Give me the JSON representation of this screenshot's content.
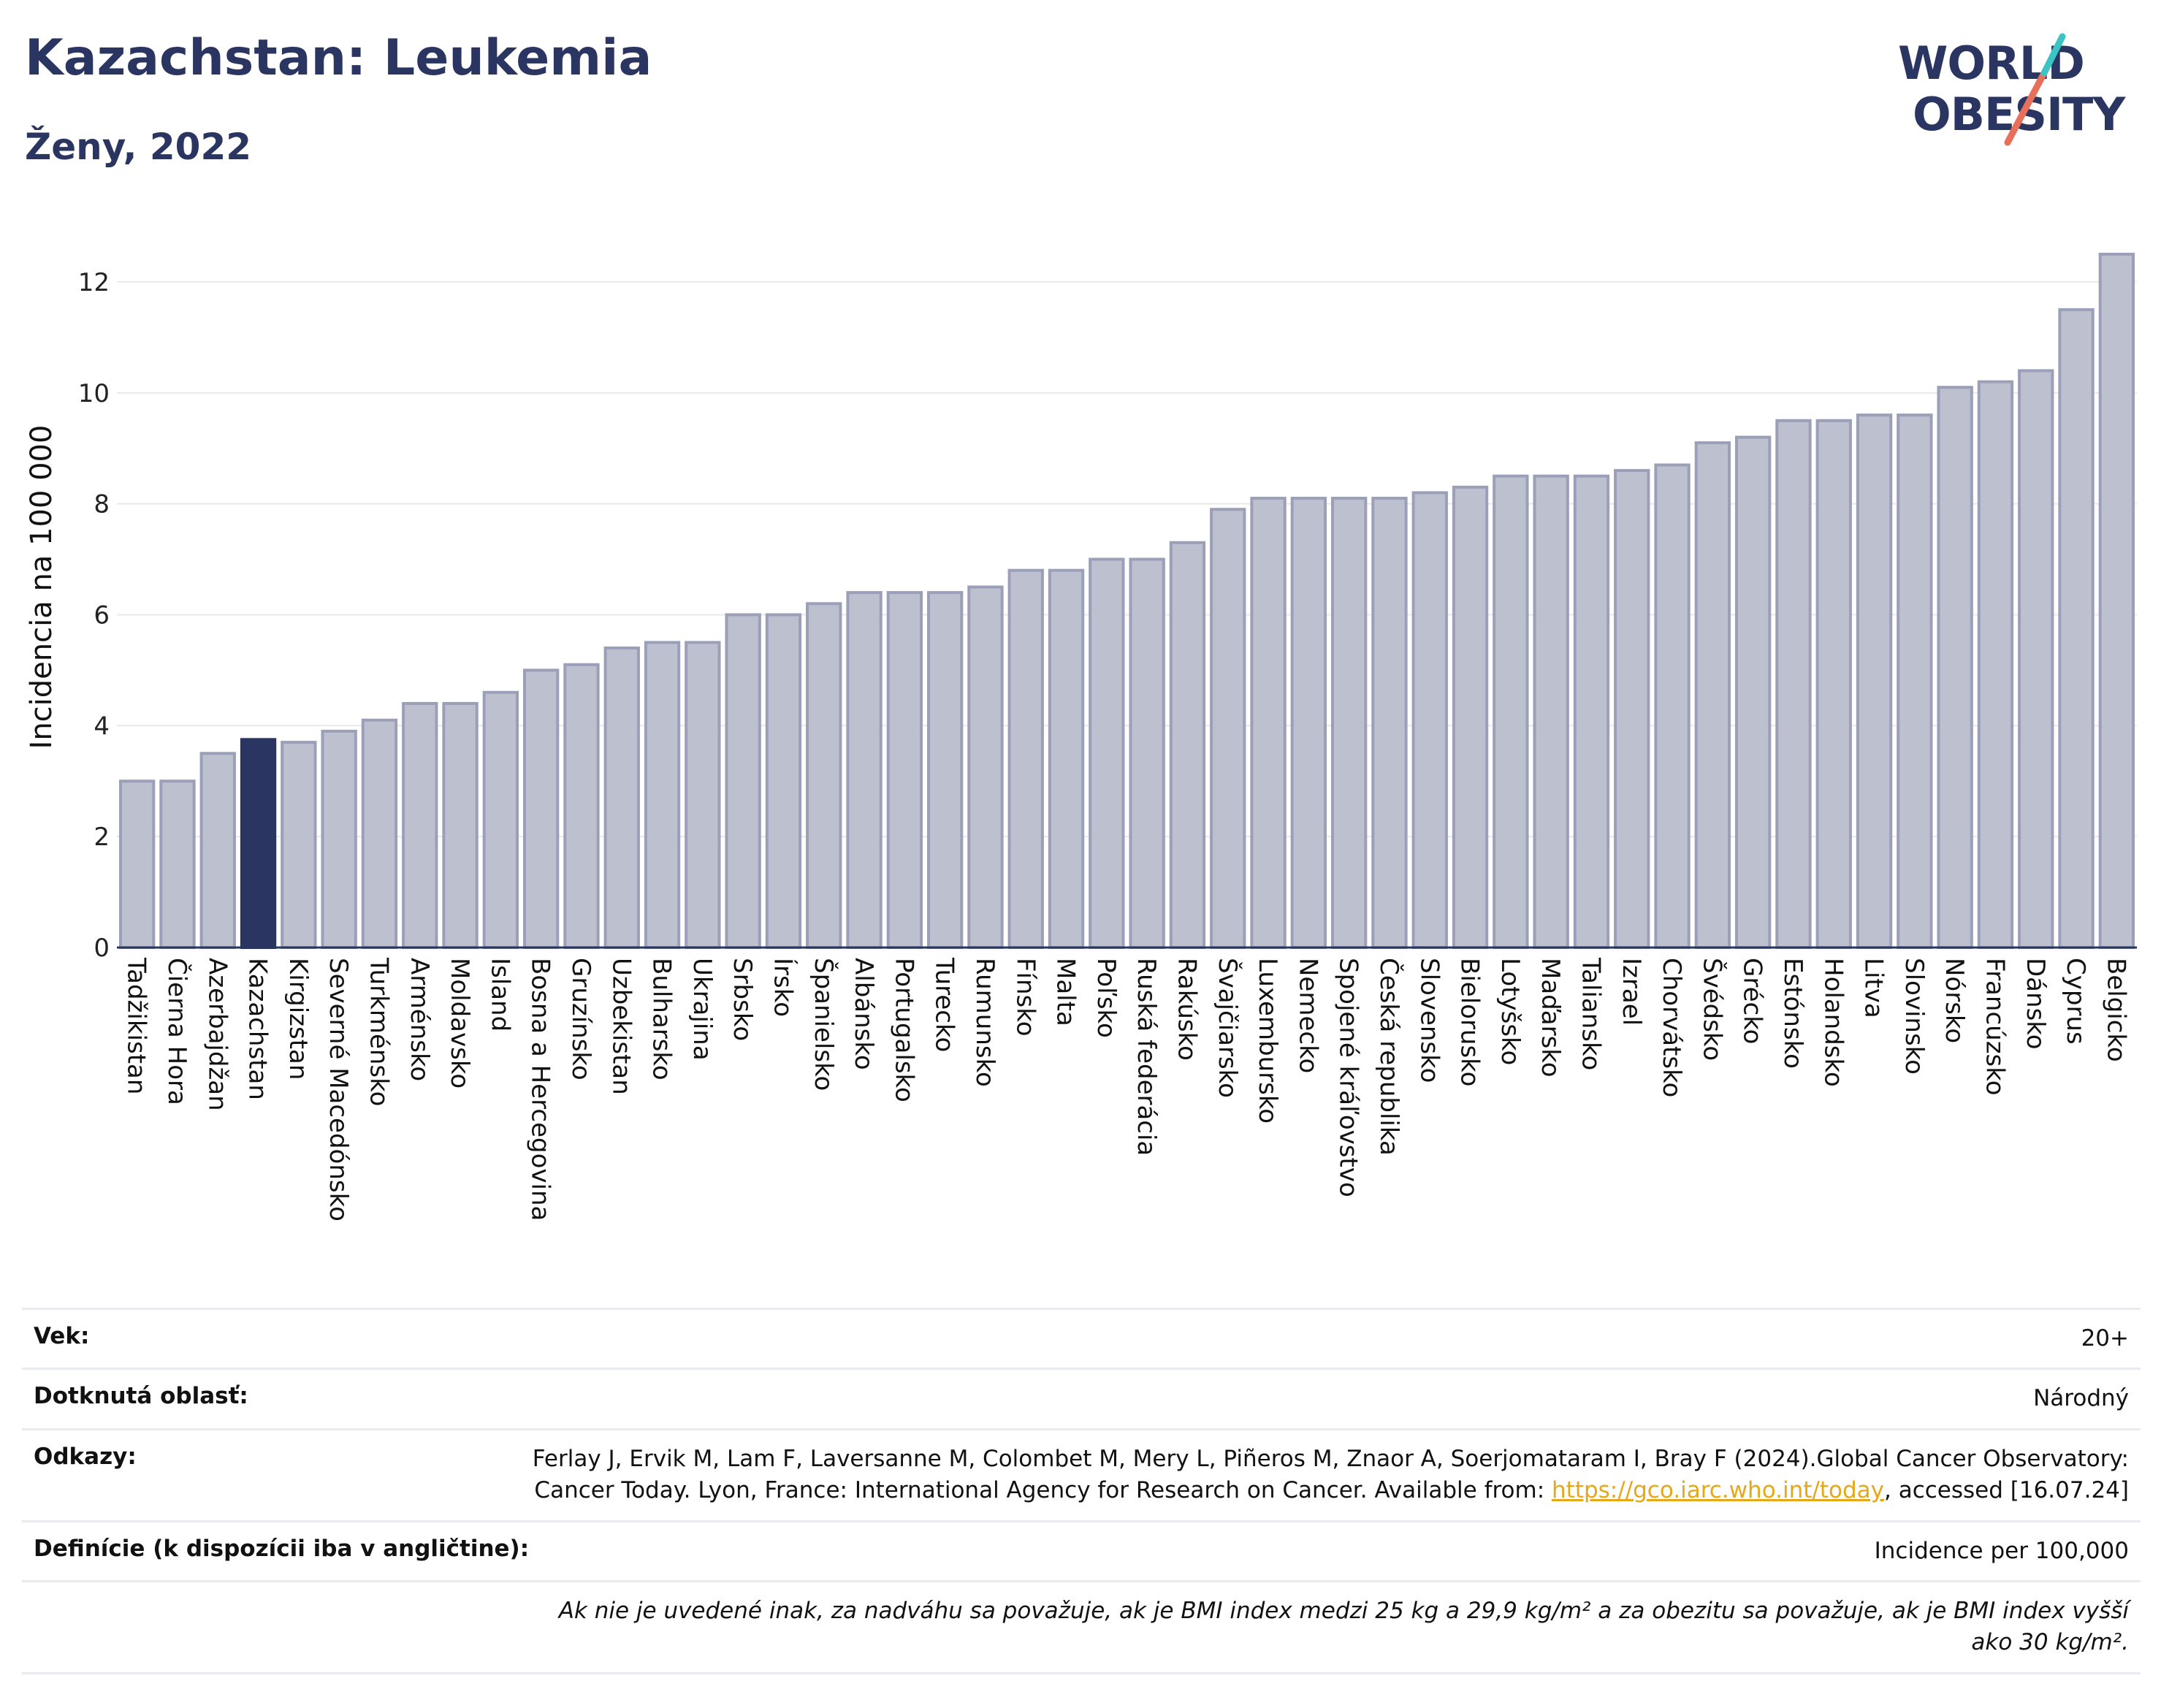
{
  "header": {
    "title": "Kazachstan: Leukemia",
    "subtitle": "Ženy, 2022"
  },
  "logo": {
    "line1": "WORLD",
    "line2": "OBESITY"
  },
  "colors": {
    "bar": "#bcc0cf",
    "bar_stroke": "#9ba0b8",
    "highlight": "#2b3562",
    "grid": "#e8e9ee"
  },
  "chart_data": {
    "type": "bar",
    "ylabel": "Incidencia na 100 000",
    "ylim": [
      0,
      13
    ],
    "yticks": [
      0,
      2,
      4,
      6,
      8,
      10,
      12
    ],
    "grid": true,
    "highlight": "Kazachstan",
    "categories": [
      "Tadžikistan",
      "Čierna Hora",
      "Azerbajdžan",
      "Kazachstan",
      "Kirgizstan",
      "Severné Macedónsko",
      "Turkménsko",
      "Arménsko",
      "Moldavsko",
      "Island",
      "Bosna a Hercegovina",
      "Gruzínsko",
      "Uzbekistan",
      "Bulharsko",
      "Ukrajina",
      "Srbsko",
      "Írsko",
      "Španielsko",
      "Albánsko",
      "Portugalsko",
      "Turecko",
      "Rumunsko",
      "Fínsko",
      "Malta",
      "Poľsko",
      "Ruská federácia",
      "Rakúsko",
      "Švajčiarsko",
      "Luxembursko",
      "Nemecko",
      "Spojené kráľovstvo",
      "Česká republika",
      "Slovensko",
      "Bielorusko",
      "Lotyšsko",
      "Maďarsko",
      "Taliansko",
      "Izrael",
      "Chorvátsko",
      "Švédsko",
      "Grécko",
      "Estónsko",
      "Holandsko",
      "Litva",
      "Slovinsko",
      "Nórsko",
      "Francúzsko",
      "Dánsko",
      "Cyprus",
      "Belgicko"
    ],
    "values": [
      3.0,
      3.0,
      3.5,
      3.75,
      3.7,
      3.9,
      4.1,
      4.4,
      4.4,
      4.6,
      5.0,
      5.1,
      5.4,
      5.5,
      5.5,
      6.0,
      6.0,
      6.2,
      6.4,
      6.4,
      6.4,
      6.5,
      6.8,
      6.8,
      7.0,
      7.0,
      7.3,
      7.9,
      8.1,
      8.1,
      8.1,
      8.1,
      8.2,
      8.3,
      8.5,
      8.5,
      8.5,
      8.6,
      8.7,
      9.1,
      9.2,
      9.5,
      9.5,
      9.6,
      9.6,
      10.1,
      10.2,
      10.4,
      11.5,
      12.5
    ]
  },
  "info": {
    "age_label": "Vek:",
    "age_value": "20+",
    "area_label": "Dotknutá oblasť:",
    "area_value": "Národný",
    "refs_label": "Odkazy:",
    "refs_text": "Ferlay J, Ervik M, Lam F, Laversanne M, Colombet M, Mery L, Piñeros M, Znaor A, Soerjomataram I, Bray F (2024).Global Cancer Observatory: Cancer Today. Lyon, France: International Agency for Research on Cancer. Available from: ",
    "refs_link": "https://gco.iarc.who.int/today",
    "refs_tail": ", accessed [16.07.24]",
    "def_label": "Definície (k dispozícii iba v angličtine):",
    "def_value": "Incidence per 100,000",
    "note": "Ak nie je uvedené inak, za nadváhu sa považuje, ak je BMI index medzi 25 kg a 29,9 kg/m² a za obezitu sa považuje, ak je BMI index vyšší ako 30 kg/m²."
  }
}
